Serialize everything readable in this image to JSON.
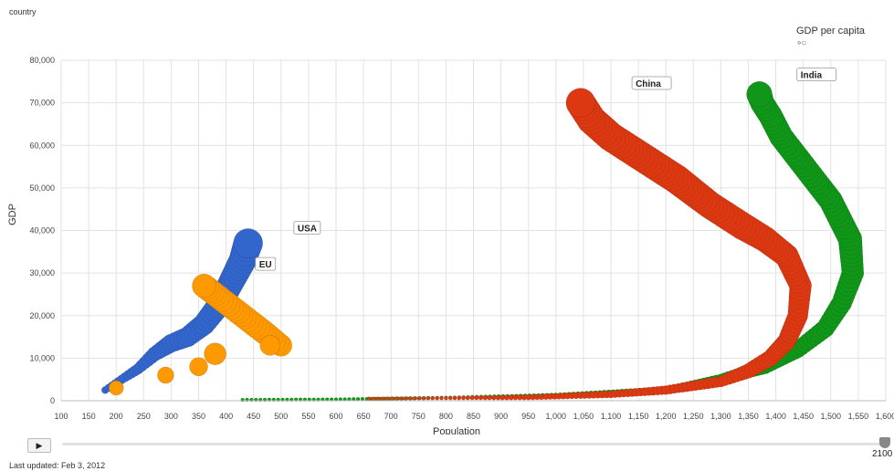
{
  "header": {
    "color_by_label": "country",
    "size_legend_title": "GDP per capita",
    "size_legend_symbol": "∘○"
  },
  "controls": {
    "play_label": "▶",
    "timeline_value": "2100"
  },
  "footer": {
    "last_updated": "Last updated: Feb 3, 2012"
  },
  "chart_data": {
    "type": "scatter",
    "title": "",
    "xlabel": "Population",
    "ylabel": "GDP",
    "xlim": [
      100,
      1600
    ],
    "ylim": [
      0,
      80000
    ],
    "x_ticks": [
      100,
      150,
      200,
      250,
      300,
      350,
      400,
      450,
      500,
      550,
      600,
      650,
      700,
      750,
      800,
      850,
      900,
      950,
      1000,
      1050,
      1100,
      1150,
      1200,
      1250,
      1300,
      1350,
      1400,
      1450,
      1500,
      1550,
      1600
    ],
    "x_tick_labels": [
      "100",
      "150",
      "200",
      "250",
      "300",
      "350",
      "400",
      "450",
      "500",
      "550",
      "600",
      "650",
      "700",
      "750",
      "800",
      "850",
      "900",
      "950",
      "1,000",
      "1,050",
      "1,100",
      "1,150",
      "1,200",
      "1,250",
      "1,300",
      "1,350",
      "1,400",
      "1,450",
      "1,500",
      "1,550",
      "1,600"
    ],
    "y_ticks": [
      0,
      10000,
      20000,
      30000,
      40000,
      50000,
      60000,
      70000,
      80000
    ],
    "y_tick_labels": [
      "0",
      "10,000",
      "20,000",
      "30,000",
      "40,000",
      "50,000",
      "60,000",
      "70,000",
      "80,000"
    ],
    "grid": true,
    "series": [
      {
        "name": "USA",
        "color": "#3366cc",
        "points": [
          [
            180,
            2500
          ],
          [
            210,
            5000
          ],
          [
            240,
            7500
          ],
          [
            270,
            11000
          ],
          [
            300,
            13500
          ],
          [
            330,
            15000
          ],
          [
            360,
            18000
          ],
          [
            390,
            23000
          ],
          [
            410,
            28000
          ],
          [
            430,
            33000
          ],
          [
            440,
            37000
          ]
        ],
        "sizes": [
          4,
          5,
          6,
          8,
          10,
          11,
          12,
          13,
          14,
          15,
          16
        ]
      },
      {
        "name": "EU",
        "color": "#ff9900",
        "points": [
          [
            500,
            13000
          ],
          [
            470,
            16000
          ],
          [
            440,
            19000
          ],
          [
            410,
            22000
          ],
          [
            380,
            25000
          ],
          [
            360,
            27000
          ]
        ],
        "sizes": [
          12,
          13,
          13,
          13,
          13,
          13
        ]
      },
      {
        "name": "China",
        "color": "#dc3912",
        "points": [
          [
            660,
            500
          ],
          [
            800,
            600
          ],
          [
            950,
            800
          ],
          [
            1100,
            1500
          ],
          [
            1200,
            2500
          ],
          [
            1300,
            4500
          ],
          [
            1350,
            7000
          ],
          [
            1390,
            10000
          ],
          [
            1420,
            14000
          ],
          [
            1440,
            20000
          ],
          [
            1445,
            27000
          ],
          [
            1420,
            34000
          ],
          [
            1380,
            38000
          ],
          [
            1340,
            41000
          ],
          [
            1280,
            46000
          ],
          [
            1220,
            52000
          ],
          [
            1160,
            57000
          ],
          [
            1100,
            62000
          ],
          [
            1065,
            66000
          ],
          [
            1045,
            70000
          ]
        ],
        "sizes": [
          2,
          2,
          3,
          4,
          5,
          6,
          8,
          9,
          10,
          11,
          12,
          13,
          14,
          15,
          15,
          16,
          16,
          16,
          16,
          16
        ]
      },
      {
        "name": "India",
        "color": "#109618",
        "points": [
          [
            430,
            200
          ],
          [
            600,
            300
          ],
          [
            800,
            700
          ],
          [
            1000,
            1200
          ],
          [
            1200,
            2500
          ],
          [
            1300,
            5000
          ],
          [
            1380,
            8000
          ],
          [
            1440,
            12000
          ],
          [
            1490,
            17000
          ],
          [
            1520,
            23000
          ],
          [
            1540,
            30000
          ],
          [
            1535,
            38000
          ],
          [
            1500,
            47000
          ],
          [
            1470,
            52000
          ],
          [
            1440,
            57000
          ],
          [
            1410,
            62000
          ],
          [
            1390,
            67000
          ],
          [
            1375,
            70000
          ],
          [
            1370,
            72000
          ]
        ],
        "sizes": [
          2,
          2,
          2,
          3,
          4,
          6,
          8,
          9,
          10,
          11,
          12,
          13,
          13,
          13,
          13,
          13,
          13,
          13,
          14
        ]
      }
    ],
    "extra_circles": [
      {
        "series": "EU",
        "points": [
          [
            200,
            3000
          ],
          [
            290,
            6000
          ],
          [
            350,
            8000
          ],
          [
            380,
            11000
          ],
          [
            480,
            13000
          ]
        ],
        "sizes": [
          8,
          9,
          10,
          12,
          11
        ]
      }
    ],
    "annotations": [
      {
        "text": "USA",
        "x": 530,
        "y": 40000
      },
      {
        "text": "EU",
        "x": 460,
        "y": 31500
      },
      {
        "text": "China",
        "x": 1145,
        "y": 74000
      },
      {
        "text": "India",
        "x": 1445,
        "y": 76000
      }
    ]
  }
}
